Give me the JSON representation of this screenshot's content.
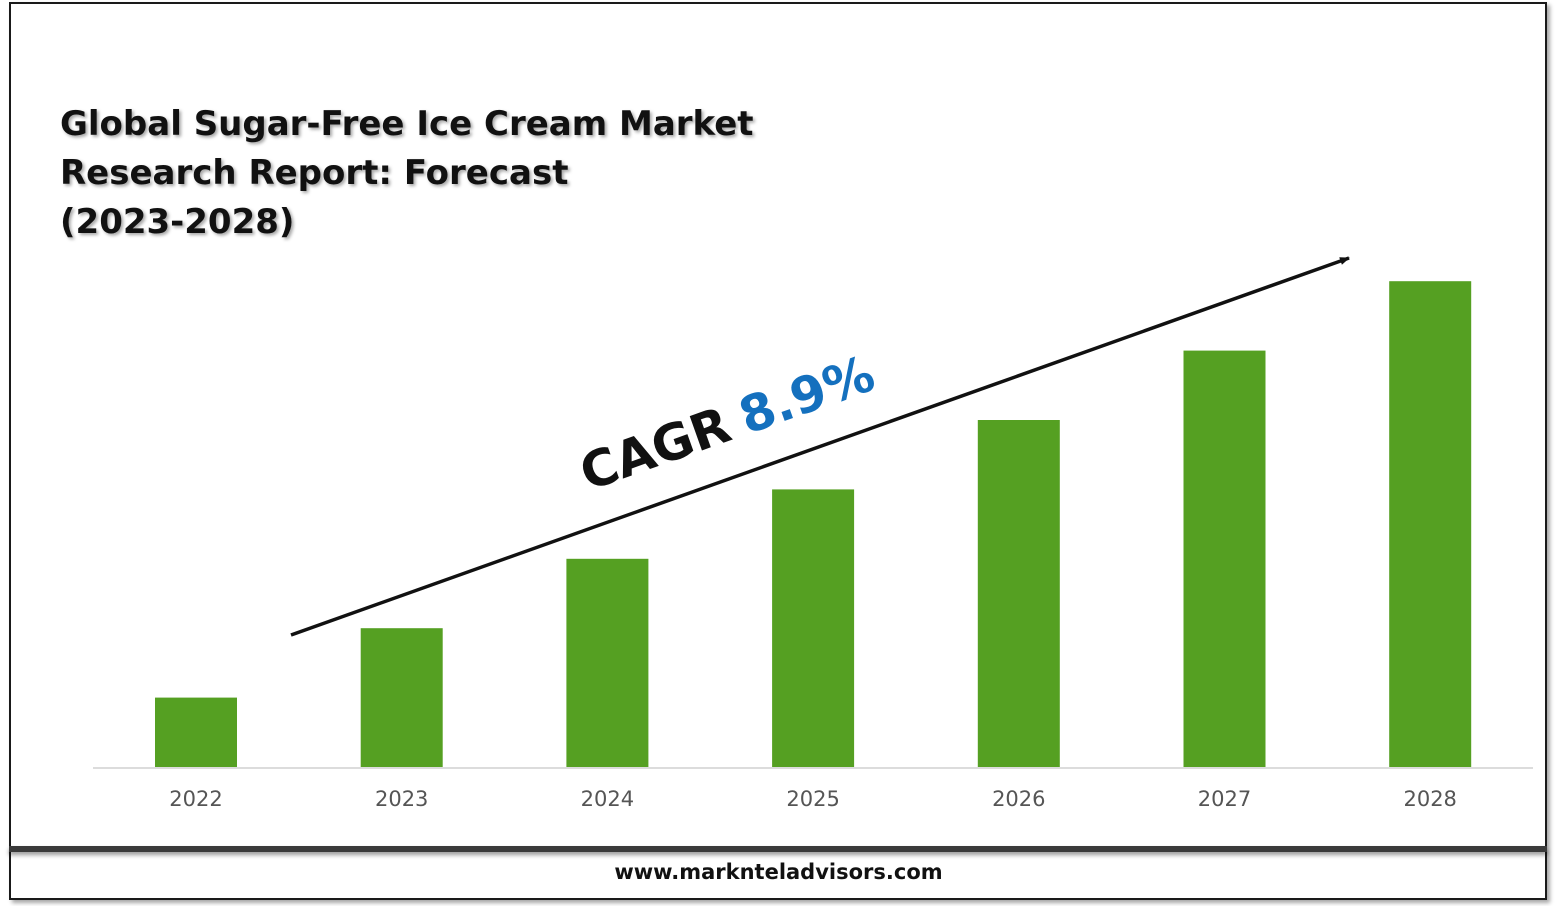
{
  "title_lines": [
    "Global Sugar-Free Ice Cream Market",
    "Research Report: Forecast",
    "(2023-2028)"
  ],
  "annotation": {
    "label": "CAGR",
    "value": "8.9%",
    "value_color": "#1470BE"
  },
  "footer": {
    "url": "www.marknteladvisors.com"
  },
  "chart_data": {
    "type": "bar",
    "title": "Global Sugar-Free Ice Cream Market Research Report: Forecast (2023-2028)",
    "categories": [
      "2022",
      "2023",
      "2024",
      "2025",
      "2026",
      "2027",
      "2028"
    ],
    "values": [
      1.0,
      2.0,
      3.0,
      4.0,
      5.0,
      6.0,
      7.0
    ],
    "ylim": [
      0,
      7.5
    ],
    "bar_color": "#55A022",
    "grid": false,
    "xlabel": "",
    "ylabel": ""
  }
}
